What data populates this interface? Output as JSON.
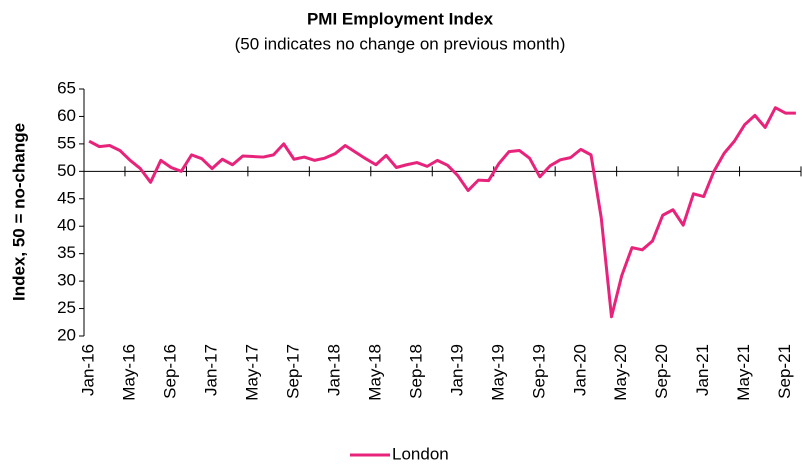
{
  "chart_data": {
    "type": "line",
    "title": "PMI Employment Index",
    "subtitle": "(50 indicates no change on previous month)",
    "y_label": "Index, 50 = no-change",
    "categories": [
      "Jan-16",
      null,
      null,
      null,
      "May-16",
      null,
      null,
      null,
      "Sep-16",
      null,
      null,
      null,
      "Jan-17",
      null,
      null,
      null,
      "May-17",
      null,
      null,
      null,
      "Sep-17",
      null,
      null,
      null,
      "Jan-18",
      null,
      null,
      null,
      "May-18",
      null,
      null,
      null,
      "Sep-18",
      null,
      null,
      null,
      "Jan-19",
      null,
      null,
      null,
      "May-19",
      null,
      null,
      null,
      "Sep-19",
      null,
      null,
      null,
      "Jan-20",
      null,
      null,
      null,
      "May-20",
      null,
      null,
      null,
      "Sep-20",
      null,
      null,
      null,
      "Jan-21",
      null,
      null,
      null,
      "May-21",
      null,
      null,
      null,
      "Sep-21",
      null
    ],
    "series": [
      {
        "name": "London",
        "color": "#e8237b",
        "values": [
          55.5,
          54.5,
          54.7,
          53.8,
          52.0,
          50.5,
          48.0,
          52.0,
          50.7,
          50.0,
          53.0,
          52.3,
          50.5,
          52.2,
          51.2,
          52.8,
          52.7,
          52.6,
          53.0,
          55.0,
          52.2,
          52.6,
          52.0,
          52.4,
          53.2,
          54.7,
          53.5,
          52.3,
          51.2,
          52.9,
          50.7,
          51.2,
          51.6,
          50.9,
          52.0,
          51.1,
          49.2,
          46.5,
          48.4,
          48.3,
          51.4,
          53.6,
          53.8,
          52.4,
          49.0,
          51.0,
          52.1,
          52.5,
          54.0,
          53.0,
          41.5,
          23.5,
          31.0,
          36.1,
          35.7,
          37.3,
          42.0,
          43.0,
          40.2,
          45.9,
          45.4,
          50.0,
          53.3,
          55.5,
          58.5,
          60.2,
          58.0,
          61.6,
          60.6,
          60.6
        ]
      }
    ],
    "ylim": [
      20,
      65
    ],
    "yticks": [
      20,
      25,
      30,
      35,
      40,
      45,
      50,
      55,
      60,
      65
    ],
    "axis_crossing": 50,
    "legend": "bottom"
  }
}
